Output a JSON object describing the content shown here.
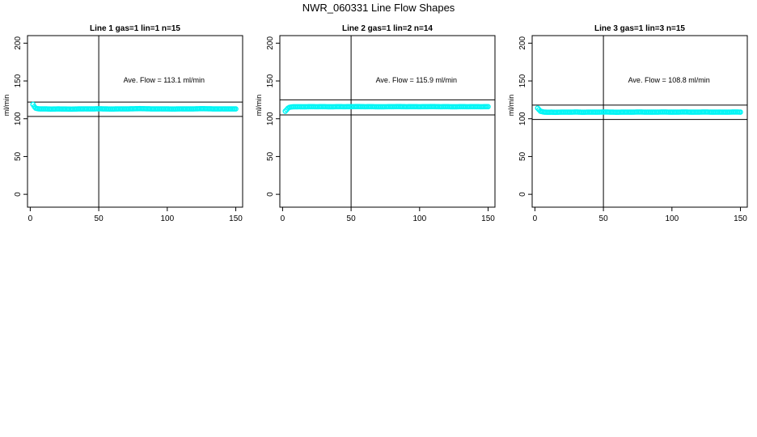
{
  "figure": {
    "title": "NWR_060331  Line Flow Shapes"
  },
  "chart_data": [
    {
      "type": "scatter",
      "title": "Line 1 gas=1 lin=1 n=15",
      "xlabel": "",
      "ylabel": "ml/min",
      "xlim": [
        -2,
        155
      ],
      "ylim": [
        -17,
        210
      ],
      "xticks": [
        0,
        50,
        100,
        150
      ],
      "yticks": [
        0,
        50,
        100,
        150,
        200
      ],
      "grid": false,
      "vline": 50,
      "hlines": [
        122,
        103
      ],
      "annotation": {
        "label": "Ave. Flow = ",
        "value": "113.1",
        "unit": "ml/min",
        "x": 68,
        "y": 148
      },
      "point_color": "#00f5f5",
      "series": [
        {
          "x": [
            2,
            3,
            4,
            5,
            6,
            7,
            8,
            10,
            12,
            15,
            20,
            25,
            30,
            35,
            40,
            45,
            50,
            55,
            60,
            65,
            70,
            75,
            80,
            85,
            90,
            95,
            100,
            105,
            110,
            115,
            120,
            125,
            130,
            135,
            140,
            145,
            150
          ],
          "y": [
            119,
            116,
            114,
            113.5,
            113.2,
            113,
            113,
            113,
            113,
            112.8,
            113,
            112.9,
            112.7,
            113,
            113.1,
            113,
            113.2,
            113,
            112.9,
            113.1,
            113,
            113.2,
            113.4,
            113.2,
            113,
            113.1,
            113,
            112.9,
            113.1,
            113,
            113.1,
            113.3,
            113.2,
            113,
            113.1,
            113,
            113
          ]
        }
      ]
    },
    {
      "type": "scatter",
      "title": "Line 2 gas=1 lin=2 n=14",
      "xlabel": "",
      "ylabel": "ml/min",
      "xlim": [
        -2,
        155
      ],
      "ylim": [
        -17,
        210
      ],
      "xticks": [
        0,
        50,
        100,
        150
      ],
      "yticks": [
        0,
        50,
        100,
        150,
        200
      ],
      "grid": false,
      "vline": 50,
      "hlines": [
        125,
        105
      ],
      "annotation": {
        "label": "Ave. Flow = ",
        "value": "115.9",
        "unit": "ml/min",
        "x": 68,
        "y": 148
      },
      "point_color": "#00f5f5",
      "series": [
        {
          "x": [
            2,
            3,
            4,
            5,
            6,
            7,
            8,
            10,
            12,
            15,
            20,
            25,
            30,
            35,
            40,
            45,
            50,
            55,
            60,
            65,
            70,
            75,
            80,
            85,
            90,
            95,
            100,
            105,
            110,
            115,
            120,
            125,
            130,
            135,
            140,
            145,
            150
          ],
          "y": [
            110,
            112,
            114,
            115,
            115.5,
            115.7,
            115.8,
            115.8,
            115.9,
            115.8,
            116,
            115.9,
            116,
            115.8,
            116,
            115.9,
            116,
            116.1,
            115.9,
            116,
            115.8,
            115.9,
            116,
            116.1,
            115.9,
            116,
            115.9,
            116,
            116.1,
            115.9,
            116,
            115.8,
            116,
            115.9,
            116,
            115.9,
            116
          ]
        }
      ]
    },
    {
      "type": "scatter",
      "title": "Line 3 gas=1 lin=3 n=15",
      "xlabel": "",
      "ylabel": "ml/min",
      "xlim": [
        -2,
        155
      ],
      "ylim": [
        -17,
        210
      ],
      "xticks": [
        0,
        50,
        100,
        150
      ],
      "yticks": [
        0,
        50,
        100,
        150,
        200
      ],
      "grid": false,
      "vline": 50,
      "hlines": [
        118,
        99
      ],
      "annotation": {
        "label": "Ave. Flow = ",
        "value": "108.8",
        "unit": "ml/min",
        "x": 68,
        "y": 148
      },
      "point_color": "#00f5f5",
      "series": [
        {
          "x": [
            2,
            3,
            4,
            5,
            6,
            7,
            8,
            10,
            12,
            15,
            20,
            25,
            30,
            35,
            40,
            45,
            50,
            55,
            60,
            65,
            70,
            75,
            80,
            85,
            90,
            95,
            100,
            105,
            110,
            115,
            120,
            125,
            130,
            135,
            140,
            145,
            150
          ],
          "y": [
            114,
            112,
            110,
            109.5,
            109,
            108.8,
            108.7,
            108.6,
            108.7,
            108.5,
            108.8,
            108.7,
            108.9,
            108.6,
            108.8,
            108.7,
            108.9,
            108.8,
            108.6,
            108.8,
            108.7,
            108.9,
            108.8,
            108.7,
            108.8,
            108.9,
            108.7,
            108.8,
            108.9,
            108.7,
            108.8,
            108.9,
            108.7,
            108.8,
            108.7,
            108.9,
            108.8
          ]
        }
      ]
    }
  ]
}
